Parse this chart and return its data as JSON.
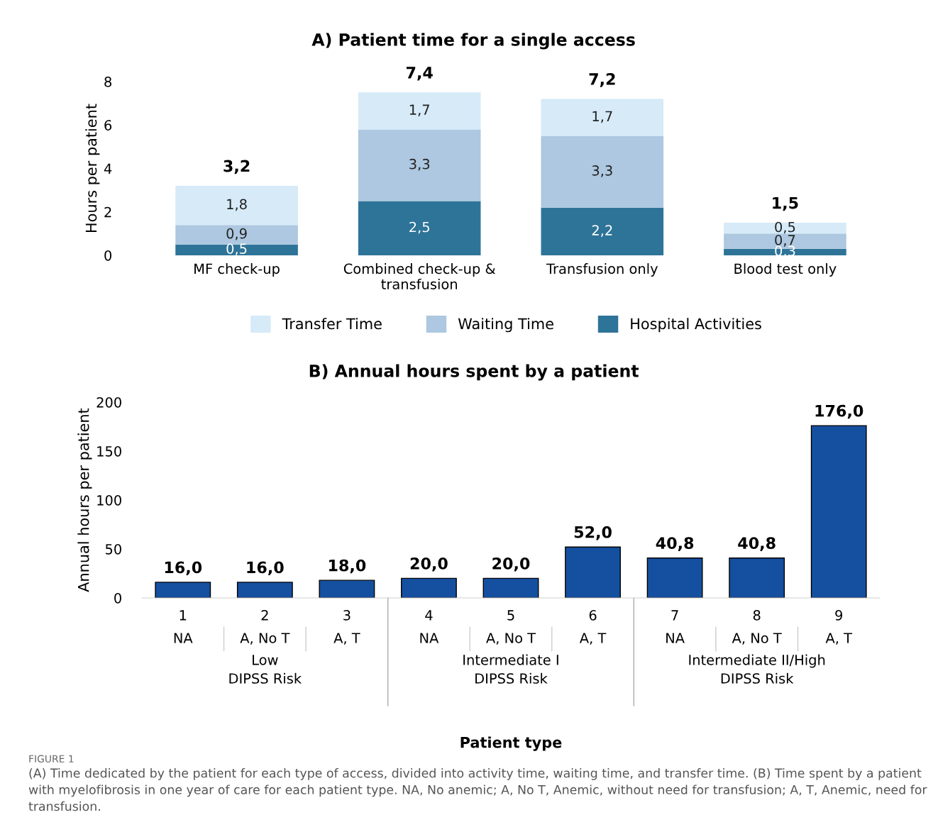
{
  "chart_data": [
    {
      "type": "bar",
      "title": "A) Patient time for a single access",
      "ylabel": "Hours per patient",
      "stacked": true,
      "categories": [
        "MF check-up",
        "Combined check-up &\ntransfusion",
        "Transfusion only",
        "Blood test only"
      ],
      "series": [
        {
          "name": "Hospital Activities",
          "color": "#2e7498",
          "values": [
            0.5,
            2.5,
            2.2,
            0.3
          ],
          "value_labels": [
            "0,5",
            "2,5",
            "2,2",
            "0,3"
          ]
        },
        {
          "name": "Waiting Time",
          "color": "#adc8e0",
          "values": [
            0.9,
            3.3,
            3.3,
            0.7
          ],
          "value_labels": [
            "0,9",
            "3,3",
            "3,3",
            "0,7"
          ]
        },
        {
          "name": "Transfer Time",
          "color": "#d6eaf8",
          "values": [
            1.8,
            1.7,
            1.7,
            0.5
          ],
          "value_labels": [
            "1,8",
            "1,7",
            "1,7",
            "0,5"
          ]
        }
      ],
      "totals": [
        "3,2",
        "7,4",
        "7,2",
        "1,5"
      ],
      "ylim": [
        0,
        8
      ],
      "yticks": [
        0,
        2,
        4,
        6,
        8
      ],
      "grid": false,
      "legend": "bottom"
    },
    {
      "type": "bar",
      "title": "B) Annual hours spent by a patient",
      "ylabel": "Annual hours per patient",
      "xlabel": "Patient type",
      "categories": [
        "1\nNA",
        "2\nA, No T",
        "3\nA, T",
        "4\nNA",
        "5\nA, No T",
        "6\nA, T",
        "7\nNA",
        "8\nA, No T",
        "9\nA, T"
      ],
      "values": [
        16.0,
        16.0,
        18.0,
        20.0,
        20.0,
        52.0,
        40.8,
        40.8,
        176.0
      ],
      "value_labels": [
        "16,0",
        "16,0",
        "18,0",
        "20,0",
        "20,0",
        "52,0",
        "40,8",
        "40,8",
        "176,0"
      ],
      "color": "#1550a0",
      "ylim": [
        0,
        200
      ],
      "yticks": [
        0,
        50,
        100,
        150,
        200
      ],
      "grid": false,
      "legend": false,
      "annotations": [
        "Low\nDIPSS Risk",
        "Intermediate I\nDIPSS Risk",
        "Intermediate II/High\nDIPSS Risk",
        "FIGURE 1",
        "(A) Time dedicated by the patient for each type of access, divided into activity time, waiting time, and transfer time. (B) Time spent by a patient with myelofibrosis in one year of care for each patient type. NA, No anemic; A, No T, Anemic, without need for transfusion; A, T, Anemic, need for transfusion."
      ]
    }
  ]
}
